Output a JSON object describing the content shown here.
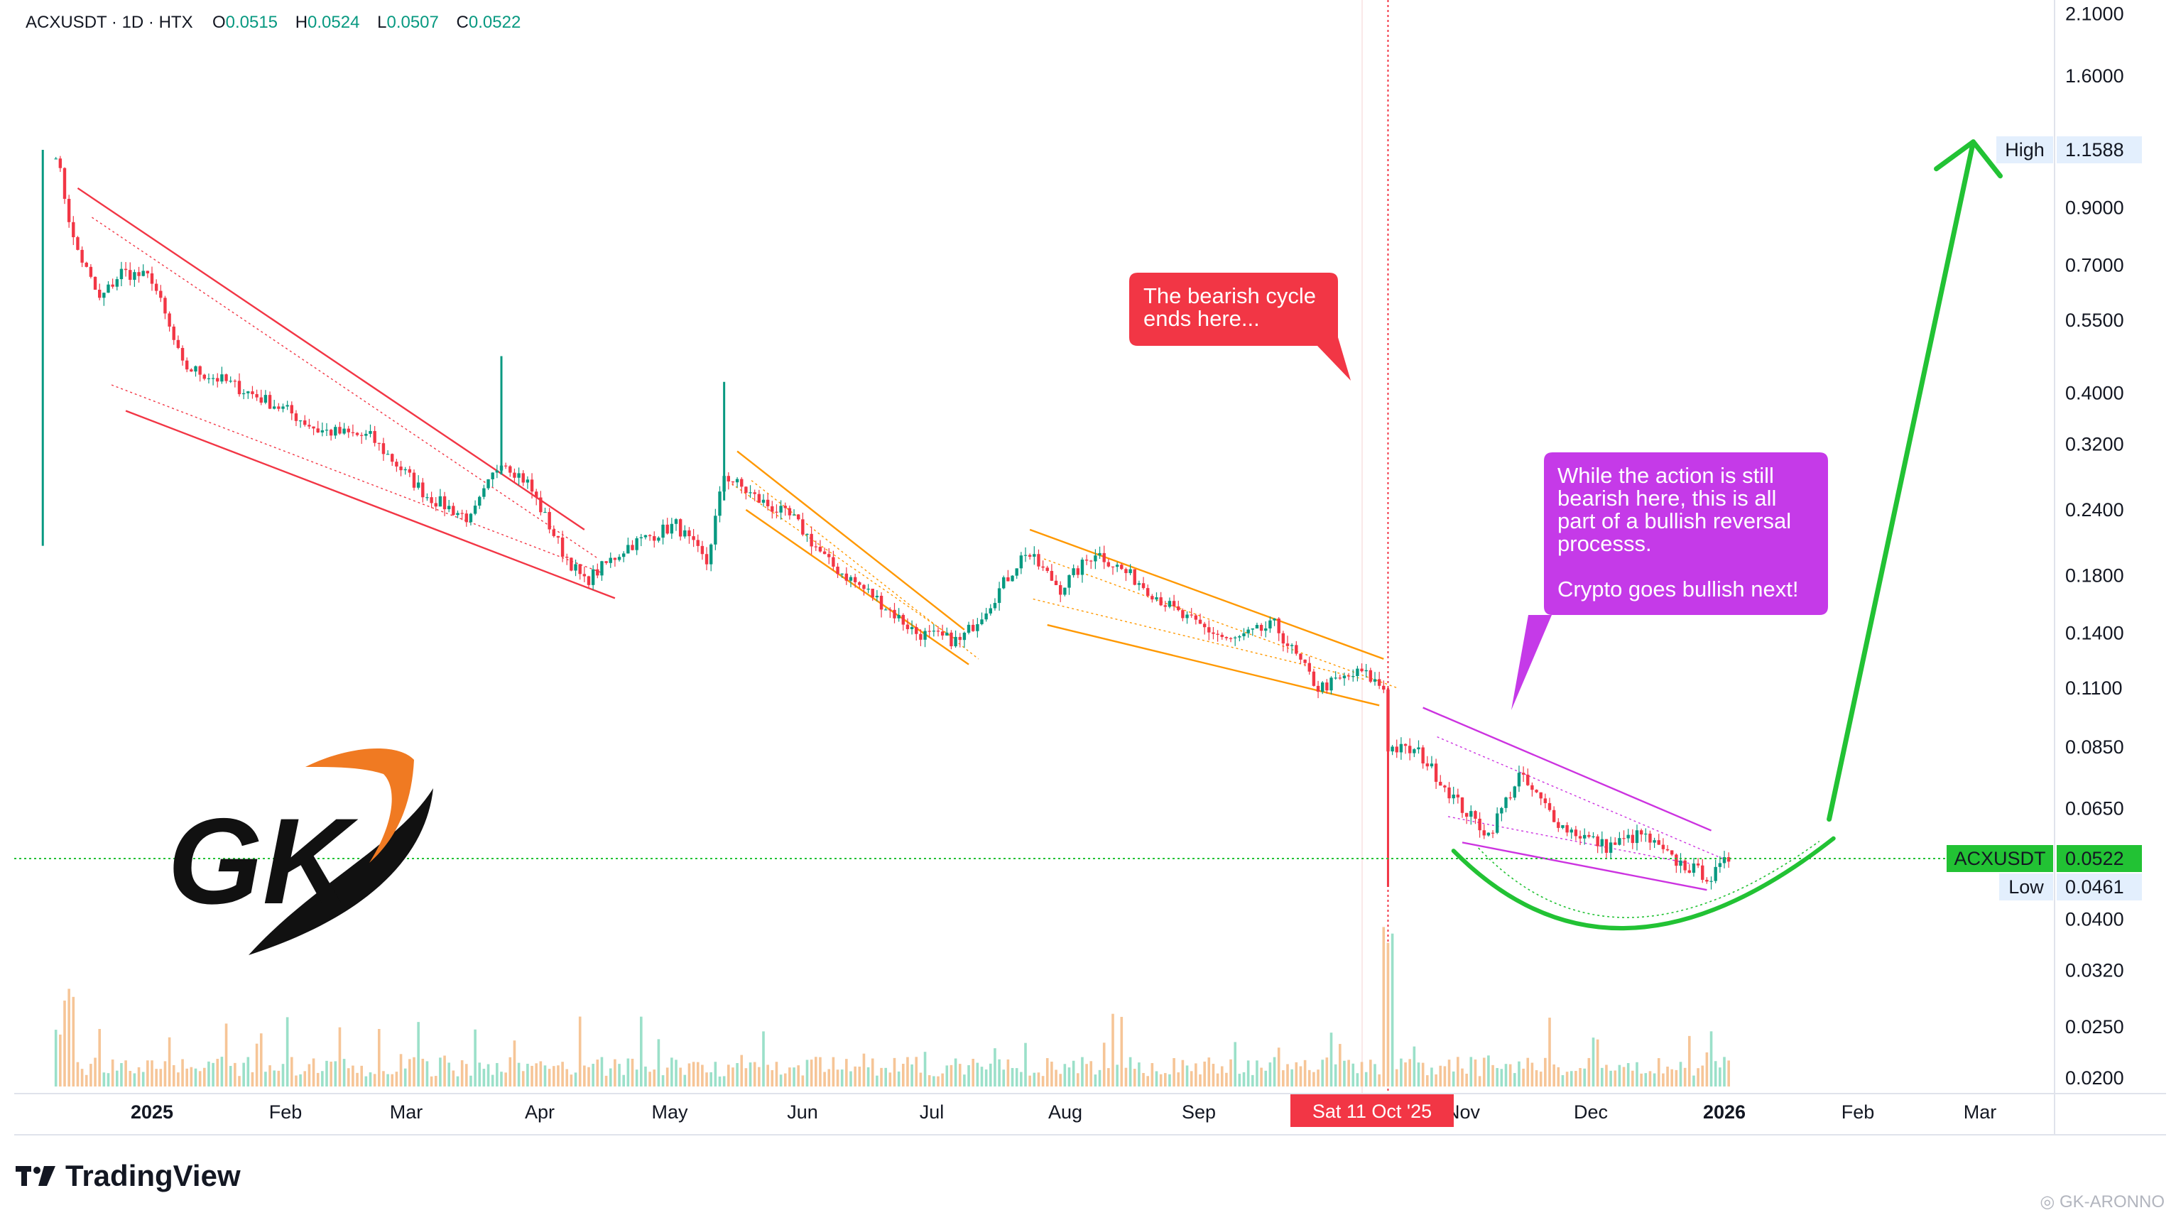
{
  "header": {
    "symbol": "ACXUSDT · 1D · HTX",
    "open_label": "O",
    "open": "0.0515",
    "high_label": "H",
    "high": "0.0524",
    "low_label": "L",
    "low": "0.0507",
    "close_label": "C",
    "close": "0.0522"
  },
  "callouts": {
    "bearish": "The bearish cycle\nends here...",
    "reversal": "While the action is still\nbearish here, this is all\npart of a bullish reversal\nprocesss.\n\nCrypto goes bullish next!"
  },
  "crosshair_date": "Sat 11 Oct '25",
  "brand": "TradingView",
  "watermark": "GK-ARONNO",
  "logo_text": "GK",
  "colors": {
    "up": "#089981",
    "down": "#f23645",
    "cross": "#f23645",
    "bearish_callout": "#f23645",
    "reversal_callout": "#c53ae8",
    "projection": "#22c234",
    "orange": "#ff9800",
    "magenta": "#cc33e0"
  },
  "chart_data": {
    "type": "candlestick",
    "title": "ACXUSDT · 1D · HTX",
    "y_scale": "log",
    "ylim": [
      0.0195,
      2.15
    ],
    "y_ticks": [
      "2.1000",
      "1.6000",
      "0.9000",
      "0.7000",
      "0.5500",
      "0.4000",
      "0.3200",
      "0.2400",
      "0.1800",
      "0.1400",
      "0.1100",
      "0.0850",
      "0.0650",
      "0.0400",
      "0.0320",
      "0.0250",
      "0.0200"
    ],
    "x_labels": [
      "2025",
      "Feb",
      "Mar",
      "Apr",
      "May",
      "Jun",
      "Jul",
      "Aug",
      "Sep",
      "Nov",
      "Dec",
      "2026",
      "Feb",
      "Mar"
    ],
    "price_labels": [
      {
        "name": "High",
        "value": "1.1588"
      },
      {
        "name": "ACXUSDT",
        "value": "0.0522"
      },
      {
        "name": "Low",
        "value": "0.0461"
      }
    ],
    "crosshair": {
      "date": "2025-10-11"
    },
    "price_path": [
      [
        "2024-12-10",
        1.15
      ],
      [
        "2024-12-14",
        0.78
      ],
      [
        "2024-12-20",
        0.6
      ],
      [
        "2024-12-25",
        0.68
      ],
      [
        "2025-01-01",
        0.66
      ],
      [
        "2025-01-08",
        0.45
      ],
      [
        "2025-01-18",
        0.42
      ],
      [
        "2025-02-01",
        0.37
      ],
      [
        "2025-02-08",
        0.34
      ],
      [
        "2025-02-20",
        0.33
      ],
      [
        "2025-03-05",
        0.255
      ],
      [
        "2025-03-15",
        0.23
      ],
      [
        "2025-03-22",
        0.3
      ],
      [
        "2025-03-28",
        0.27
      ],
      [
        "2025-04-05",
        0.2
      ],
      [
        "2025-04-10",
        0.175
      ],
      [
        "2025-04-20",
        0.205
      ],
      [
        "2025-05-01",
        0.225
      ],
      [
        "2025-05-08",
        0.19
      ],
      [
        "2025-05-12",
        0.28
      ],
      [
        "2025-05-20",
        0.25
      ],
      [
        "2025-05-28",
        0.23
      ],
      [
        "2025-06-05",
        0.19
      ],
      [
        "2025-06-15",
        0.165
      ],
      [
        "2025-06-25",
        0.14
      ],
      [
        "2025-07-05",
        0.135
      ],
      [
        "2025-07-12",
        0.16
      ],
      [
        "2025-07-20",
        0.2
      ],
      [
        "2025-07-28",
        0.17
      ],
      [
        "2025-08-05",
        0.2
      ],
      [
        "2025-08-15",
        0.175
      ],
      [
        "2025-08-25",
        0.15
      ],
      [
        "2025-09-05",
        0.135
      ],
      [
        "2025-09-15",
        0.145
      ],
      [
        "2025-09-25",
        0.11
      ],
      [
        "2025-10-05",
        0.118
      ],
      [
        "2025-10-10",
        0.11
      ],
      [
        "2025-10-11",
        0.085
      ],
      [
        "2025-10-18",
        0.083
      ],
      [
        "2025-10-28",
        0.065
      ],
      [
        "2025-11-03",
        0.058
      ],
      [
        "2025-11-10",
        0.075
      ],
      [
        "2025-11-20",
        0.06
      ],
      [
        "2025-11-30",
        0.055
      ],
      [
        "2025-12-08",
        0.058
      ],
      [
        "2025-12-15",
        0.052
      ],
      [
        "2025-12-24",
        0.048
      ],
      [
        "2025-12-28",
        0.0522
      ]
    ],
    "spikes": [
      {
        "date": "2024-12-07",
        "low": 0.205,
        "high": 1.1588
      },
      {
        "date": "2025-03-22",
        "low": 0.28,
        "high": 0.47
      },
      {
        "date": "2025-05-12",
        "low": 0.25,
        "high": 0.42
      },
      {
        "date": "2025-10-11",
        "low": 0.0461,
        "high": 0.11
      }
    ],
    "channels": [
      {
        "color": "#f23645",
        "upper": [
          [
            "2024-12-15",
            0.98
          ],
          [
            "2025-04-10",
            0.22
          ]
        ],
        "lower": [
          [
            "2024-12-26",
            0.37
          ],
          [
            "2025-04-17",
            0.163
          ]
        ]
      },
      {
        "color": "#ff9800",
        "upper": [
          [
            "2025-05-15",
            0.31
          ],
          [
            "2025-07-06",
            0.142
          ]
        ],
        "lower": [
          [
            "2025-05-17",
            0.24
          ],
          [
            "2025-07-07",
            0.122
          ]
        ]
      },
      {
        "color": "#ff9800",
        "upper": [
          [
            "2025-07-21",
            0.22
          ],
          [
            "2025-10-10",
            0.125
          ]
        ],
        "lower": [
          [
            "2025-07-25",
            0.145
          ],
          [
            "2025-10-09",
            0.102
          ]
        ]
      },
      {
        "color": "#cc33e0",
        "upper": [
          [
            "2025-10-19",
            0.101
          ],
          [
            "2025-12-24",
            0.059
          ]
        ],
        "lower": [
          [
            "2025-10-28",
            0.056
          ],
          [
            "2025-12-23",
            0.0455
          ]
        ]
      }
    ],
    "projection": {
      "arc": [
        [
          "2025-10-26",
          0.054
        ],
        [
          "2025-12-05",
          0.0385
        ],
        [
          "2026-01-21",
          0.057
        ]
      ],
      "arrow": [
        [
          "2026-01-20",
          0.062
        ],
        [
          "2026-02-22",
          1.2
        ]
      ]
    }
  }
}
